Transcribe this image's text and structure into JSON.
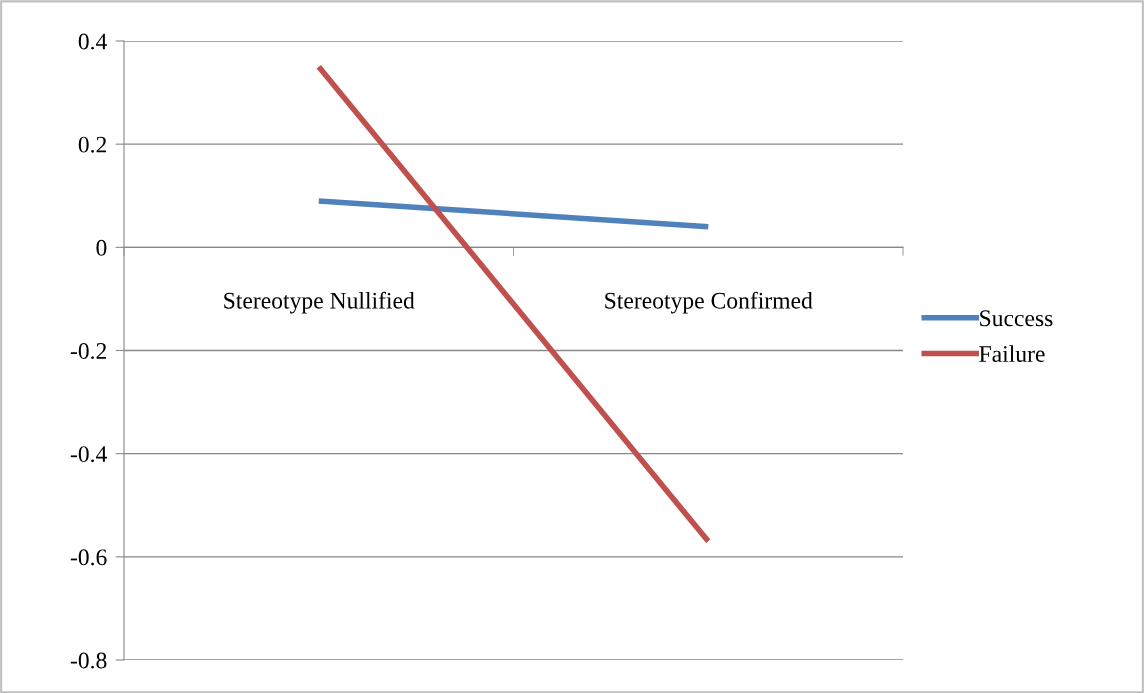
{
  "chart_data": {
    "type": "line",
    "categories": [
      "Stereotype Nullified",
      "Stereotype Confirmed"
    ],
    "series": [
      {
        "name": "Success",
        "color": "#4f81bd",
        "values": [
          0.09,
          0.04
        ]
      },
      {
        "name": "Failure",
        "color": "#c0504d",
        "values": [
          0.35,
          -0.57
        ]
      }
    ],
    "ylim": [
      -0.8,
      0.4
    ],
    "yticks": [
      {
        "value": -0.8,
        "label": "-0.8"
      },
      {
        "value": -0.6,
        "label": "-0.6"
      },
      {
        "value": -0.4,
        "label": "-0.4"
      },
      {
        "value": -0.2,
        "label": "-0.2"
      },
      0,
      0.2,
      0.4
    ],
    "grid": "y",
    "legend": "right",
    "marker": "none",
    "line_style": "solid"
  }
}
